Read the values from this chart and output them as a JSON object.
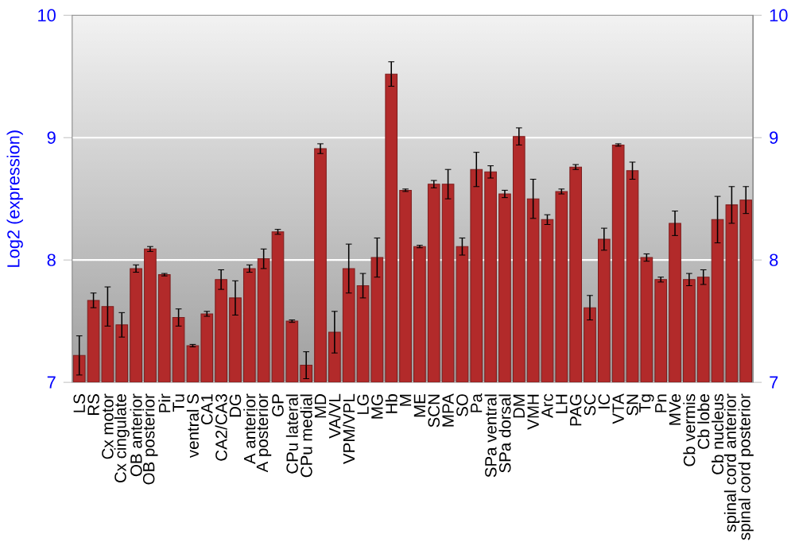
{
  "chart_data": {
    "type": "bar",
    "ylabel": "Log2 (expression)",
    "categories": [
      "LS",
      "RS",
      "Cx motor",
      "Cx cingulate",
      "OB anterior",
      "OB posterior",
      "Pir",
      "Tu",
      "ventral S",
      "CA1",
      "CA2/CA3",
      "DG",
      "A anterior",
      "A posterior",
      "GP",
      "CPu lateral",
      "CPu medial",
      "MD",
      "VA/VL",
      "VPM/VPL",
      "LG",
      "MG",
      "Hb",
      "M",
      "ME",
      "SCN",
      "MPA",
      "SO",
      "Pa",
      "SPa ventral",
      "SPa dorsal",
      "DM",
      "VMH",
      "Arc",
      "LH",
      "PAG",
      "SC",
      "IC",
      "VTA",
      "SN",
      "Tg",
      "Pn",
      "MVe",
      "Cb vermis",
      "Cb lobe",
      "Cb nucleus",
      "spinal cord anterior",
      "spinal cord posterior"
    ],
    "values": [
      7.22,
      7.67,
      7.62,
      7.47,
      7.93,
      8.09,
      7.88,
      7.53,
      7.3,
      7.56,
      7.84,
      7.69,
      7.93,
      8.01,
      8.23,
      7.5,
      7.14,
      8.91,
      7.41,
      7.93,
      7.79,
      8.02,
      9.52,
      8.57,
      8.11,
      8.62,
      8.62,
      8.11,
      8.74,
      8.72,
      8.54,
      9.01,
      8.5,
      8.33,
      8.56,
      8.76,
      7.61,
      8.17,
      8.94,
      8.73,
      8.02,
      7.84,
      8.3,
      7.84,
      7.86,
      8.33,
      8.45,
      8.49
    ],
    "errors": [
      0.16,
      0.06,
      0.16,
      0.1,
      0.03,
      0.02,
      0.01,
      0.07,
      0.01,
      0.02,
      0.08,
      0.14,
      0.03,
      0.08,
      0.02,
      0.01,
      0.11,
      0.04,
      0.17,
      0.2,
      0.1,
      0.16,
      0.1,
      0.01,
      0.01,
      0.03,
      0.12,
      0.07,
      0.14,
      0.05,
      0.03,
      0.07,
      0.16,
      0.04,
      0.02,
      0.02,
      0.1,
      0.09,
      0.01,
      0.07,
      0.03,
      0.02,
      0.1,
      0.05,
      0.06,
      0.19,
      0.15,
      0.11
    ],
    "color": "#b22a2a",
    "ylim": [
      7,
      10
    ],
    "yticks": [
      7,
      8,
      9,
      10
    ],
    "y2lim": [
      7,
      10
    ],
    "y2ticks": [
      7,
      8,
      9,
      10
    ],
    "grid": "y"
  }
}
